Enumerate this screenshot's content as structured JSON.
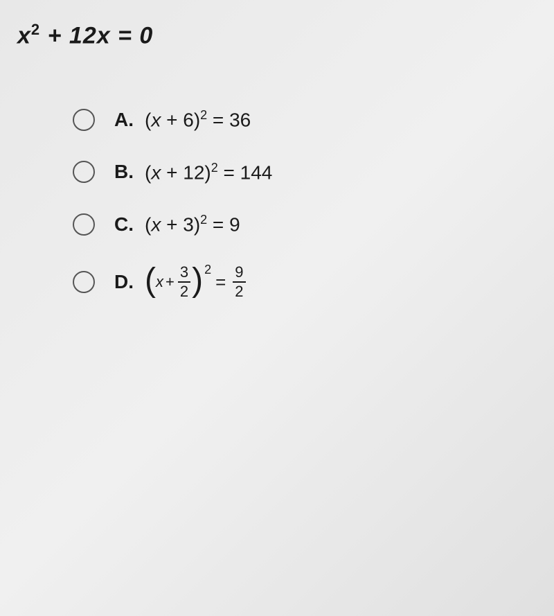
{
  "question": {
    "var1": "x",
    "exp1": "2",
    "plus": "+ 12",
    "var2": "x",
    "equals": "= 0"
  },
  "options": {
    "a": {
      "label": "A.",
      "left_open": "(",
      "var": "x",
      "middle": "+ 6)",
      "exp": "2",
      "right": " = 36"
    },
    "b": {
      "label": "B.",
      "left_open": "(",
      "var": "x",
      "middle": "+ 12)",
      "exp": "2",
      "right": " = 144"
    },
    "c": {
      "label": "C.",
      "left_open": "(",
      "var": "x",
      "middle": "+ 3)",
      "exp": "2",
      "right": " = 9"
    },
    "d": {
      "label": "D.",
      "var": "x",
      "plus": "+",
      "frac1_num": "3",
      "frac1_den": "2",
      "exp": "2",
      "equals": "=",
      "frac2_num": "9",
      "frac2_den": "2"
    }
  },
  "style": {
    "radio_border_color": "#555555",
    "text_color": "#1a1a1a",
    "background_color": "#e8e8e8"
  }
}
